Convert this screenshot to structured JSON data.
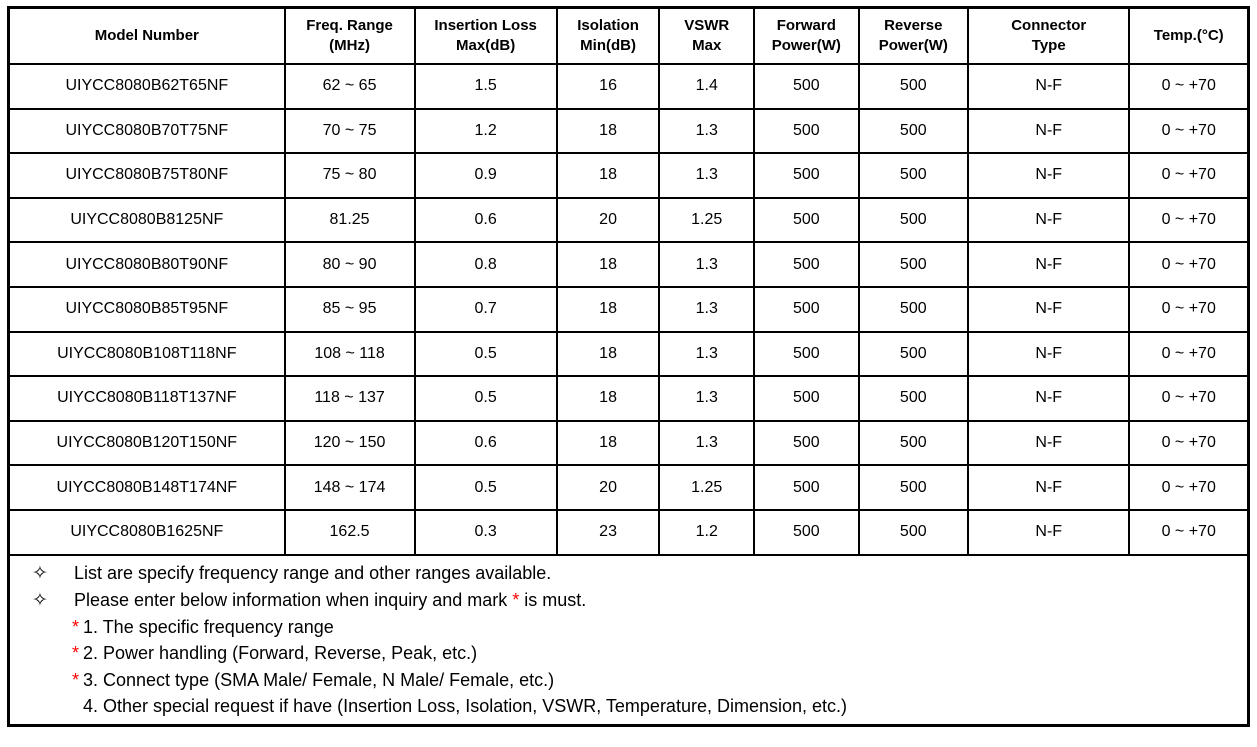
{
  "table": {
    "headers": [
      "Model Number",
      "Freq. Range\n(MHz)",
      "Insertion Loss\nMax(dB)",
      "Isolation\nMin(dB)",
      "VSWR\nMax",
      "Forward\nPower(W)",
      "Reverse\nPower(W)",
      "Connector\nType",
      "Temp.(°C)"
    ],
    "rows": [
      [
        "UIYCC8080B62T65NF",
        "62 ~ 65",
        "1.5",
        "16",
        "1.4",
        "500",
        "500",
        "N-F",
        "0 ~ +70"
      ],
      [
        "UIYCC8080B70T75NF",
        "70 ~ 75",
        "1.2",
        "18",
        "1.3",
        "500",
        "500",
        "N-F",
        "0 ~ +70"
      ],
      [
        "UIYCC8080B75T80NF",
        "75 ~ 80",
        "0.9",
        "18",
        "1.3",
        "500",
        "500",
        "N-F",
        "0 ~ +70"
      ],
      [
        "UIYCC8080B8125NF",
        "81.25",
        "0.6",
        "20",
        "1.25",
        "500",
        "500",
        "N-F",
        "0 ~ +70"
      ],
      [
        "UIYCC8080B80T90NF",
        "80 ~ 90",
        "0.8",
        "18",
        "1.3",
        "500",
        "500",
        "N-F",
        "0 ~ +70"
      ],
      [
        "UIYCC8080B85T95NF",
        "85 ~ 95",
        "0.7",
        "18",
        "1.3",
        "500",
        "500",
        "N-F",
        "0 ~ +70"
      ],
      [
        "UIYCC8080B108T118NF",
        "108 ~ 118",
        "0.5",
        "18",
        "1.3",
        "500",
        "500",
        "N-F",
        "0 ~ +70"
      ],
      [
        "UIYCC8080B118T137NF",
        "118 ~ 137",
        "0.5",
        "18",
        "1.3",
        "500",
        "500",
        "N-F",
        "0 ~ +70"
      ],
      [
        "UIYCC8080B120T150NF",
        "120 ~ 150",
        "0.6",
        "18",
        "1.3",
        "500",
        "500",
        "N-F",
        "0 ~ +70"
      ],
      [
        "UIYCC8080B148T174NF",
        "148 ~ 174",
        "0.5",
        "20",
        "1.25",
        "500",
        "500",
        "N-F",
        "0 ~ +70"
      ],
      [
        "UIYCC8080B1625NF",
        "162.5",
        "0.3",
        "23",
        "1.2",
        "500",
        "500",
        "N-F",
        "0 ~ +70"
      ]
    ]
  },
  "notes": {
    "bullets": [
      {
        "marker": "✧",
        "pre": "List are specify frequency range and other ranges available.",
        "star": "",
        "post": ""
      },
      {
        "marker": "✧",
        "pre": "Please enter below information when inquiry and mark ",
        "star": "*",
        "post": " is must."
      }
    ],
    "items": [
      {
        "star": "*",
        "text": "1. The specific frequency range"
      },
      {
        "star": "*",
        "text": "2. Power handling (Forward, Reverse, Peak, etc.)"
      },
      {
        "star": "*",
        "text": "3. Connect type (SMA Male/ Female, N Male/ Female, etc.)"
      },
      {
        "star": "",
        "text": "4. Other special request if have (Insertion Loss, Isolation, VSWR, Temperature, Dimension, etc.)"
      }
    ]
  },
  "colors": {
    "border": "#000000",
    "text": "#000000",
    "star_red": "#ff0000",
    "background": "#ffffff"
  }
}
